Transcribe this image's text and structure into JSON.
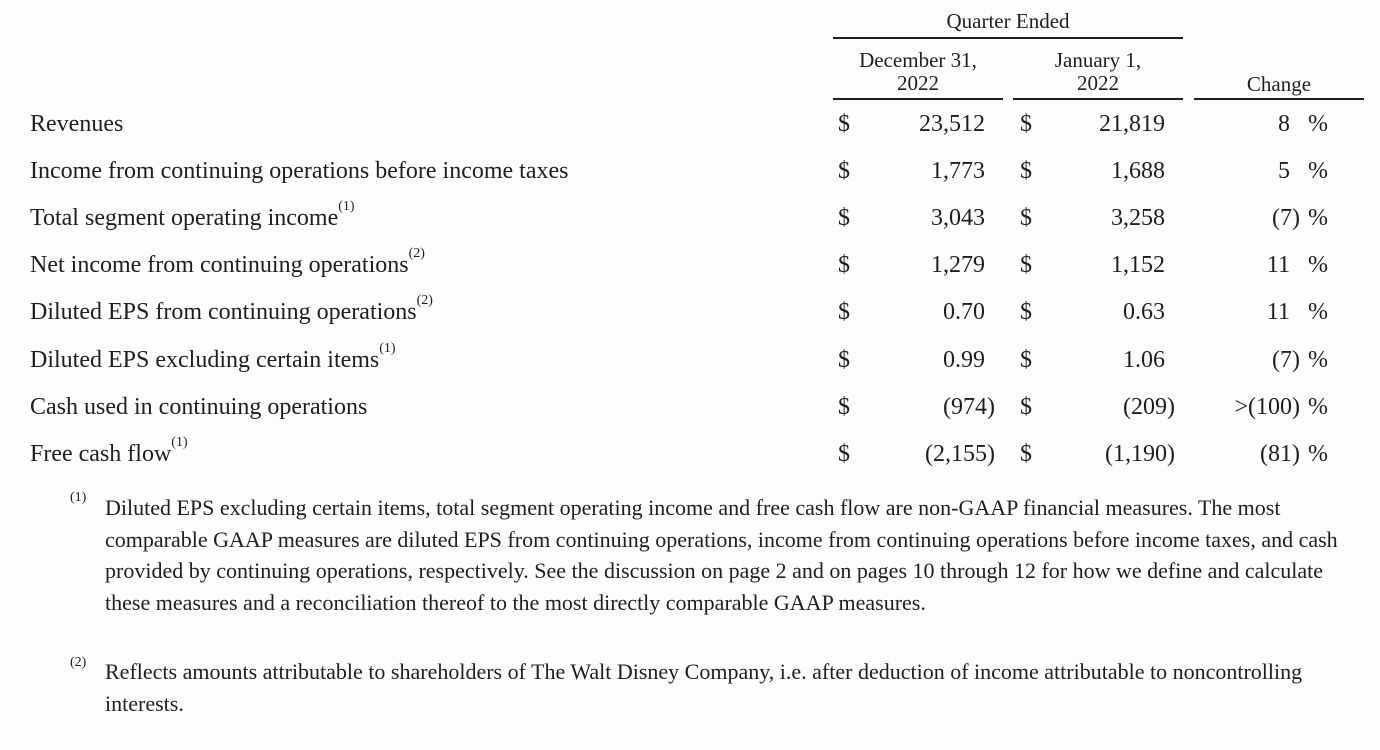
{
  "header": {
    "group_label": "Quarter Ended",
    "col1": [
      "December 31,",
      "2022"
    ],
    "col2": [
      "January 1,",
      "2022"
    ],
    "col3": "Change"
  },
  "currency_symbol": "$",
  "percent_symbol": "%",
  "rows": [
    {
      "label": "Revenues",
      "note": "",
      "current": "23,512",
      "prior": "21,819",
      "change": "8"
    },
    {
      "label": "Income from continuing operations before income taxes",
      "note": "",
      "current": "1,773",
      "prior": "1,688",
      "change": "5"
    },
    {
      "label": "Total segment operating income",
      "note": "(1)",
      "current": "3,043",
      "prior": "3,258",
      "change": "(7)"
    },
    {
      "label": "Net income from continuing operations",
      "note": "(2)",
      "current": "1,279",
      "prior": "1,152",
      "change": "11"
    },
    {
      "label": "Diluted EPS from continuing operations",
      "note": "(2)",
      "current": "0.70",
      "prior": "0.63",
      "change": "11"
    },
    {
      "label": "Diluted EPS excluding certain items",
      "note": "(1)",
      "current": "0.99",
      "prior": "1.06",
      "change": "(7)"
    },
    {
      "label": "Cash used in continuing operations",
      "note": "",
      "current": "(974)",
      "prior": "(209)",
      "change": ">(100)"
    },
    {
      "label": "Free cash flow",
      "note": "(1)",
      "current": "(2,155)",
      "prior": "(1,190)",
      "change": "(81)"
    }
  ],
  "footnotes": [
    {
      "marker": "(1)",
      "text": "Diluted EPS excluding certain items, total segment operating income and free cash flow are non-GAAP financial measures. The most comparable GAAP measures are diluted EPS from continuing operations, income from continuing operations before income taxes, and cash provided by continuing operations, respectively. See the discussion on page 2 and on pages 10 through 12 for how we define and calculate these measures and a reconciliation thereof to the most directly comparable GAAP measures."
    },
    {
      "marker": "(2)",
      "text": "Reflects amounts attributable to shareholders of The Walt Disney Company, i.e. after deduction of income attributable to noncontrolling interests."
    }
  ]
}
